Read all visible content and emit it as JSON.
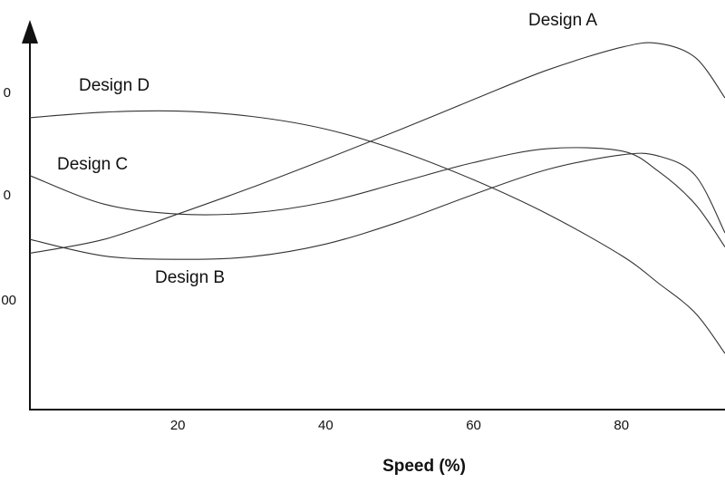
{
  "chart_data": {
    "type": "line",
    "xlabel": "Speed (%)",
    "ylabel": "",
    "xlim": [
      0,
      94
    ],
    "ylim": [
      0,
      100
    ],
    "x_ticks": [
      20,
      40,
      60,
      80
    ],
    "y_tick_labels": [
      "0",
      "0",
      "00"
    ],
    "grid": false,
    "series": [
      {
        "name": "Design A",
        "x": [
          0,
          10,
          20,
          30,
          40,
          50,
          60,
          70,
          80,
          85,
          90,
          94
        ],
        "y": [
          40.7,
          44.3,
          50.9,
          57.8,
          65.2,
          72.8,
          80.7,
          88.4,
          94.3,
          95.3,
          91.6,
          81.1
        ]
      },
      {
        "name": "Design B",
        "x": [
          0,
          10,
          20,
          30,
          40,
          50,
          60,
          70,
          80,
          85,
          90,
          94
        ],
        "y": [
          44.3,
          40.0,
          39.1,
          39.8,
          43.1,
          48.9,
          56.0,
          62.5,
          66.3,
          66.0,
          60.9,
          46.0
        ]
      },
      {
        "name": "Design C",
        "x": [
          0,
          10,
          20,
          30,
          40,
          50,
          60,
          70,
          80,
          85,
          90,
          94
        ],
        "y": [
          60.9,
          53.5,
          50.9,
          51.2,
          54.0,
          59.1,
          64.3,
          67.9,
          67.3,
          62.0,
          53.4,
          42.3
        ]
      },
      {
        "name": "Design D",
        "x": [
          0,
          10,
          20,
          30,
          40,
          50,
          60,
          70,
          80,
          85,
          90,
          94
        ],
        "y": [
          76.0,
          77.4,
          77.7,
          76.3,
          73.0,
          67.3,
          59.8,
          50.9,
          40.1,
          32.9,
          25.1,
          14.6
        ]
      }
    ]
  }
}
